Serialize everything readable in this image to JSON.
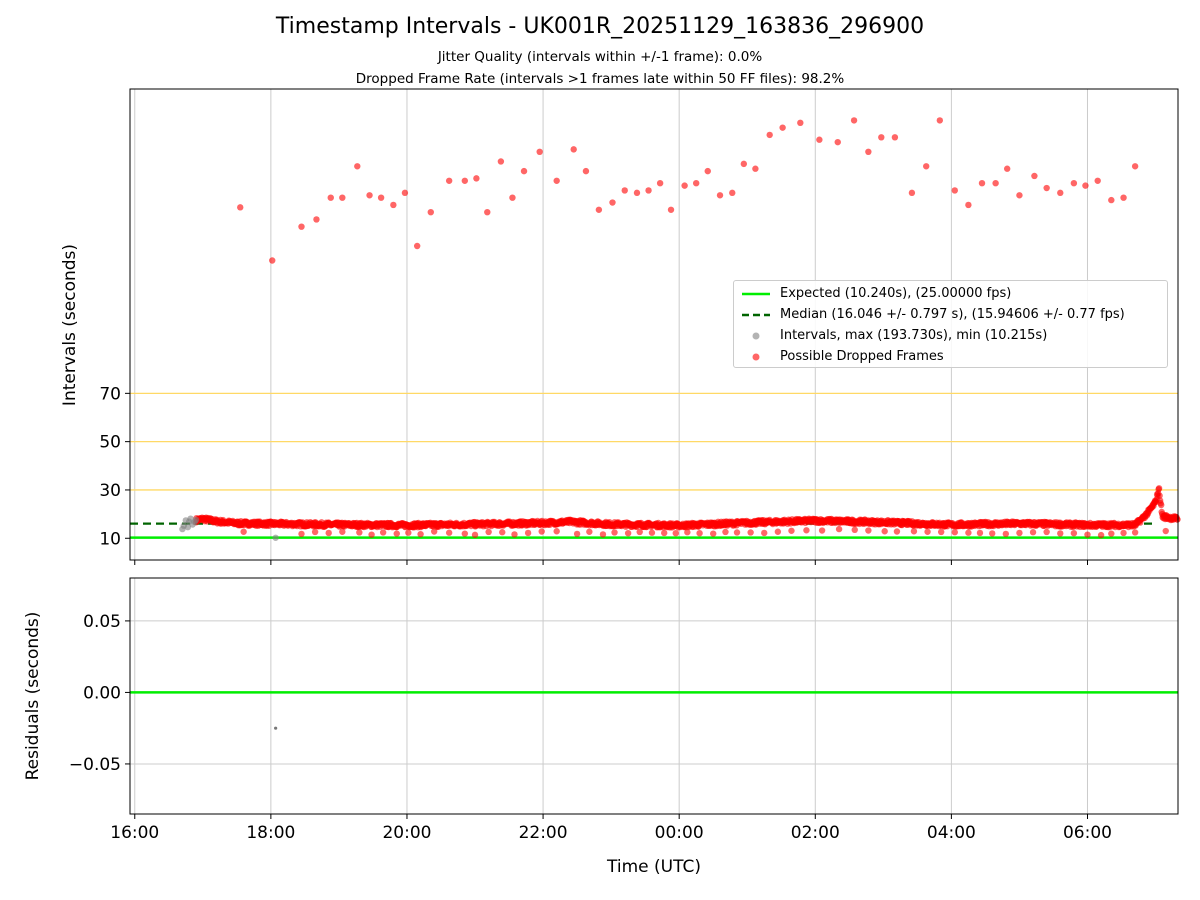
{
  "title": "Timestamp Intervals - UK001R_20251129_163836_296900",
  "subtitle_1": "Jitter Quality (intervals within +/-1 frame): 0.0%",
  "subtitle_2": "Dropped Frame Rate (intervals >1 frames late within 50 FF files): 98.2%",
  "colors": {
    "expected": "#00ee00",
    "median": "#006400",
    "intervals": "#808080",
    "dropped": "#ff0000",
    "threshold": "#ffd966",
    "grid": "#cccccc"
  },
  "chart_data": [
    {
      "type": "scatter",
      "title": "Timestamp Intervals - UK001R_20251129_163836_296900",
      "xlabel": "Time (UTC)",
      "ylabel": "Intervals (seconds)",
      "xlim_hours": [
        15.93,
        31.33
      ],
      "ylim": [
        1,
        196
      ],
      "y_ticks": [
        10,
        30,
        50,
        70
      ],
      "y_tick_labels": [
        "10",
        "30",
        "50",
        "70"
      ],
      "x_ticks_hours": [
        16,
        18,
        20,
        22,
        24,
        26,
        28,
        30
      ],
      "x_tick_labels": [
        "16:00",
        "18:00",
        "20:00",
        "22:00",
        "00:00",
        "02:00",
        "04:00",
        "06:00"
      ],
      "threshold_lines": [
        30,
        50,
        70
      ],
      "expected_value": 10.24,
      "median_value": 16.046,
      "median_end_hour": 30.95,
      "legend": {
        "position": "center-right",
        "entries": [
          "Expected (10.240s), (25.00000 fps)",
          "Median (16.046 +/- 0.797 s), (15.94606 +/- 0.77 fps)",
          "Intervals, max (193.730s), min (10.215s)",
          "Possible Dropped Frames"
        ]
      },
      "series": [
        {
          "name": "Intervals",
          "hours": [
            16.7,
            16.72,
            16.75,
            16.78,
            16.8,
            16.82,
            16.85,
            16.88,
            16.9,
            18.07
          ],
          "values": [
            13.8,
            15.2,
            17.4,
            14.6,
            16.9,
            18.1,
            15.7,
            16.8,
            17.6,
            10.2
          ]
        },
        {
          "name": "Possible Dropped Frames (outliers)",
          "hours": [
            17.55,
            18.02,
            18.45,
            18.67,
            18.88,
            19.05,
            19.27,
            19.45,
            19.62,
            19.8,
            19.97,
            20.15,
            20.35,
            20.62,
            20.85,
            21.02,
            21.18,
            21.38,
            21.55,
            21.72,
            21.95,
            22.2,
            22.45,
            22.63,
            22.82,
            23.02,
            23.2,
            23.38,
            23.55,
            23.72,
            23.88,
            24.08,
            24.25,
            24.42,
            24.6,
            24.78,
            24.95,
            25.12,
            25.33,
            25.52,
            25.78,
            26.06,
            26.33,
            26.57,
            26.78,
            26.97,
            27.17,
            27.42,
            27.63,
            27.83,
            28.05,
            28.25,
            28.45,
            28.65,
            28.82,
            29.0,
            29.22,
            29.4,
            29.6,
            29.8,
            29.97,
            30.15,
            30.35,
            30.53,
            30.7
          ],
          "values": [
            147,
            125,
            139,
            142,
            151,
            151,
            164,
            152,
            151,
            148,
            153,
            131,
            145,
            158,
            158,
            159,
            145,
            166,
            151,
            162,
            170,
            158,
            171,
            162,
            146,
            149,
            154,
            153,
            154,
            157,
            146,
            156,
            157,
            162,
            152,
            153,
            165,
            163,
            177,
            180,
            182,
            175,
            174,
            183,
            170,
            176,
            176,
            153,
            164,
            183,
            154,
            148,
            157,
            157,
            163,
            152,
            160,
            155,
            153,
            157,
            156,
            158,
            150,
            151,
            164
          ]
        },
        {
          "name": "Possible Dropped Frames (lower row)",
          "hours": [
            17.6,
            18.45,
            18.65,
            18.85,
            19.05,
            19.3,
            19.48,
            19.65,
            19.85,
            20.02,
            20.2,
            20.4,
            20.62,
            20.85,
            21.0,
            21.2,
            21.4,
            21.58,
            21.78,
            21.98,
            22.2,
            22.5,
            22.68,
            22.88,
            23.05,
            23.25,
            23.42,
            23.6,
            23.78,
            23.95,
            24.12,
            24.3,
            24.5,
            24.68,
            24.85,
            25.05,
            25.25,
            25.45,
            25.65,
            25.87,
            26.1,
            26.35,
            26.58,
            26.78,
            27.02,
            27.2,
            27.45,
            27.65,
            27.85,
            28.05,
            28.25,
            28.42,
            28.6,
            28.8,
            29.0,
            29.2,
            29.4,
            29.6,
            29.8,
            30.0,
            30.2,
            30.35,
            30.53,
            30.7,
            31.15
          ],
          "values": [
            12.7,
            11.8,
            12.6,
            12.2,
            12.7,
            12.4,
            11.5,
            12.4,
            11.9,
            12.3,
            11.7,
            12.8,
            12.3,
            11.9,
            11.4,
            12.6,
            12.5,
            11.6,
            12.2,
            12.8,
            12.9,
            11.8,
            12.7,
            11.6,
            12.4,
            12.1,
            12.6,
            12.3,
            12.2,
            12.1,
            12.5,
            12.1,
            11.9,
            12.6,
            12.4,
            12.4,
            12.2,
            12.7,
            13.1,
            13.3,
            13.2,
            13.8,
            13.5,
            13.2,
            12.9,
            12.8,
            12.9,
            12.7,
            12.6,
            12.5,
            12.3,
            12.2,
            12.0,
            11.8,
            12.2,
            12.5,
            12.6,
            12.0,
            12.1,
            11.5,
            11.3,
            11.9,
            12.2,
            12.4,
            13.0
          ]
        },
        {
          "name": "Possible Dropped Frames (main band)",
          "from_hour": 16.9,
          "to_hour": 31.33,
          "band_profile_hours": [
            16.9,
            17.0,
            17.2,
            17.5,
            18.0,
            18.5,
            19.0,
            20.0,
            21.0,
            22.0,
            22.4,
            23.0,
            24.0,
            25.0,
            26.0,
            27.0,
            28.0,
            29.0,
            30.0,
            30.7,
            30.8,
            30.9,
            31.0,
            31.05,
            31.1,
            31.33
          ],
          "band_profile_values": [
            17.5,
            18.0,
            17.0,
            16.2,
            16.0,
            15.8,
            15.6,
            15.4,
            15.8,
            16.3,
            16.8,
            15.8,
            15.3,
            16.4,
            17.3,
            16.6,
            15.6,
            16.1,
            15.5,
            15.5,
            18.0,
            21.0,
            25.0,
            30.5,
            19.0,
            18.0
          ]
        }
      ]
    },
    {
      "type": "scatter",
      "xlabel": "Time (UTC)",
      "ylabel": "Residuals (seconds)",
      "xlim_hours": [
        15.93,
        31.33
      ],
      "ylim": [
        -0.085,
        0.08
      ],
      "y_ticks": [
        0.05,
        0.0,
        -0.05
      ],
      "y_tick_labels": [
        "0.05",
        "0.00",
        "−0.05"
      ],
      "x_ticks_hours": [
        16,
        18,
        20,
        22,
        24,
        26,
        28,
        30
      ],
      "x_tick_labels": [
        "16:00",
        "18:00",
        "20:00",
        "22:00",
        "00:00",
        "02:00",
        "04:00",
        "06:00"
      ],
      "zero_line": 0.0,
      "series": [
        {
          "name": "Residuals",
          "hours": [
            18.07
          ],
          "values": [
            -0.025
          ]
        }
      ]
    }
  ]
}
